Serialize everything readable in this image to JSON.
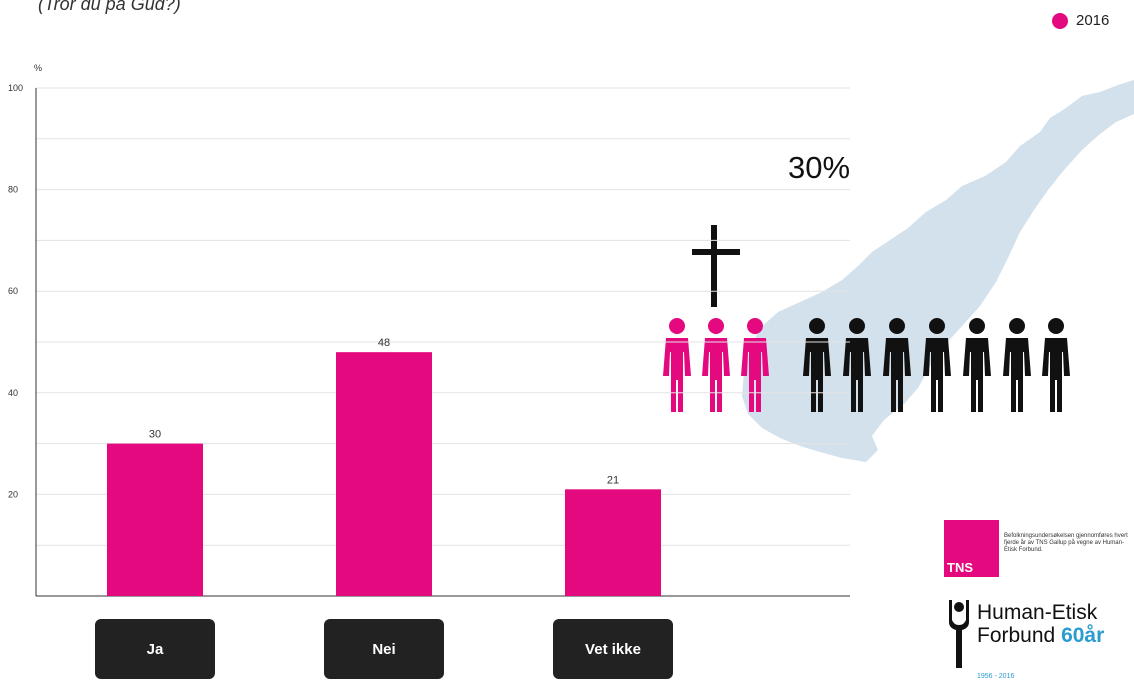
{
  "subtitle": "(Tror du på Gud?)",
  "legend": {
    "label": "2016",
    "color": "#e5097f"
  },
  "highlight": {
    "percent_text": "30%"
  },
  "infographic": {
    "highlighted_people": 3,
    "total_people": 10,
    "highlight_color": "#e5097f",
    "other_color": "#111111",
    "map_color": "#d3e1ec"
  },
  "logos": {
    "tns_text": "TNS",
    "tns_note": "Befolkningsundersøkelsen gjennomføres hvert fjerde år av TNS Gallup på vegne av Human-Etisk Forbund.",
    "hef_line1": "Human-Etisk",
    "hef_line2": "Forbund",
    "hef_60": "60",
    "hef_aar": "år",
    "hef_years": "1956 - 2016"
  },
  "chart_data": {
    "type": "bar",
    "categories": [
      "Ja",
      "Nei",
      "Vet ikke"
    ],
    "series": [
      {
        "name": "2016",
        "values": [
          30,
          48,
          21
        ],
        "color": "#e5097f"
      }
    ],
    "ylabel": "%",
    "ylim": [
      0,
      100
    ],
    "yticks": [
      20,
      40,
      60,
      80,
      100
    ],
    "grid": true,
    "legend_position": "top-right"
  }
}
